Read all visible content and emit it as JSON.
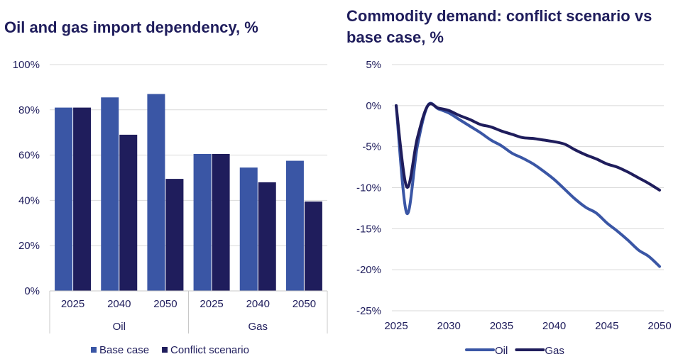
{
  "chart_data": [
    {
      "type": "bar",
      "title": "Oil and gas import dependency, %",
      "groups": [
        {
          "label": "Oil",
          "categories": [
            "2025",
            "2040",
            "2050"
          ]
        },
        {
          "label": "Gas",
          "categories": [
            "2025",
            "2040",
            "2050"
          ]
        }
      ],
      "series": [
        {
          "name": "Base case",
          "color": "#3a56a5",
          "values": [
            81,
            85.5,
            87,
            60.5,
            54.5,
            57.5
          ]
        },
        {
          "name": "Conflict scenario",
          "color": "#1f1d5c",
          "values": [
            81,
            69,
            49.5,
            60.5,
            48,
            39.5
          ]
        }
      ],
      "ylim": [
        0,
        100
      ],
      "yticks": [
        "0%",
        "20%",
        "40%",
        "60%",
        "80%",
        "100%"
      ],
      "grid": true,
      "legend": "bottom"
    },
    {
      "type": "line",
      "title": "Commodity demand: conflict scenario vs base case, %",
      "x": [
        2025,
        2026,
        2027,
        2028,
        2029,
        2030,
        2031,
        2032,
        2033,
        2034,
        2035,
        2036,
        2037,
        2038,
        2039,
        2040,
        2041,
        2042,
        2043,
        2044,
        2045,
        2046,
        2047,
        2048,
        2049,
        2050
      ],
      "series": [
        {
          "name": "Oil",
          "color": "#3a56a5",
          "values": [
            0,
            -13.1,
            -5,
            0,
            -0.4,
            -0.9,
            -1.7,
            -2.5,
            -3.3,
            -4.2,
            -4.9,
            -5.8,
            -6.4,
            -7.1,
            -8.0,
            -9.0,
            -10.2,
            -11.4,
            -12.4,
            -13.1,
            -14.3,
            -15.3,
            -16.4,
            -17.6,
            -18.4,
            -19.6
          ]
        },
        {
          "name": "Gas",
          "color": "#1f1d5c",
          "values": [
            0,
            -9.9,
            -4,
            0,
            -0.3,
            -0.6,
            -1.2,
            -1.7,
            -2.3,
            -2.6,
            -3.1,
            -3.5,
            -3.9,
            -4.0,
            -4.2,
            -4.4,
            -4.7,
            -5.4,
            -6.0,
            -6.5,
            -7.1,
            -7.5,
            -8.1,
            -8.8,
            -9.5,
            -10.3
          ]
        }
      ],
      "xlim": [
        2025,
        2050
      ],
      "xticks": [
        "2025",
        "2030",
        "2035",
        "2040",
        "2045",
        "2050"
      ],
      "ylim": [
        -25,
        5
      ],
      "yticks": [
        "5%",
        "0%",
        "-5%",
        "-10%",
        "-15%",
        "-20%",
        "-25%"
      ],
      "grid": true,
      "legend": "bottom"
    }
  ]
}
